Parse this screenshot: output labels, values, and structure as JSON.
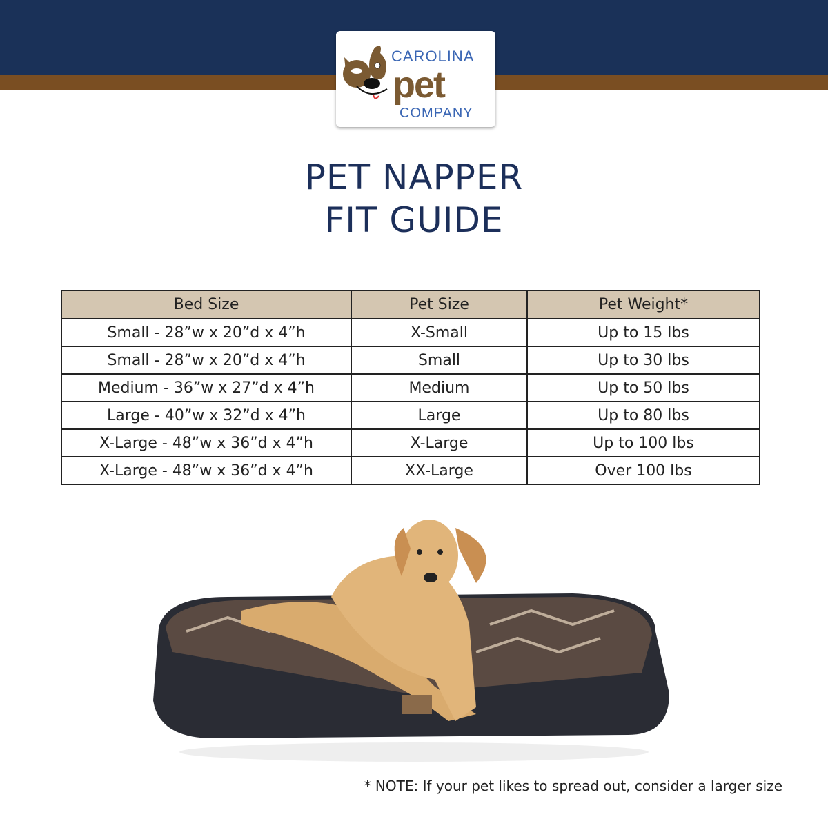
{
  "brand": {
    "line1": "CAROLINA",
    "line2": "pet",
    "line3": "COMPANY",
    "colors": {
      "navy": "#1a3158",
      "brown": "#7a4e22",
      "logo_blue": "#3a66b4"
    }
  },
  "title": {
    "line1": "PET NAPPER",
    "line2": "FIT GUIDE"
  },
  "table": {
    "headers": [
      "Bed Size",
      "Pet Size",
      "Pet Weight*"
    ],
    "rows": [
      [
        "Small - 28”w x 20”d x 4”h",
        "X-Small",
        "Up to 15 lbs"
      ],
      [
        "Small - 28”w x 20”d x 4”h",
        "Small",
        "Up to 30 lbs"
      ],
      [
        "Medium - 36”w x 27”d x 4”h",
        "Medium",
        "Up to 50 lbs"
      ],
      [
        "Large - 40”w x 32”d x 4”h",
        "Large",
        "Up to 80 lbs"
      ],
      [
        "X-Large - 48”w x 36”d x 4”h",
        "X-Large",
        "Up to 100 lbs"
      ],
      [
        "X-Large - 48”w x 36”d x 4”h",
        "XX-Large",
        "Over 100 lbs"
      ]
    ],
    "header_color": "#d4c6b1"
  },
  "note": "* NOTE: If your pet likes to spread out, consider a larger size"
}
